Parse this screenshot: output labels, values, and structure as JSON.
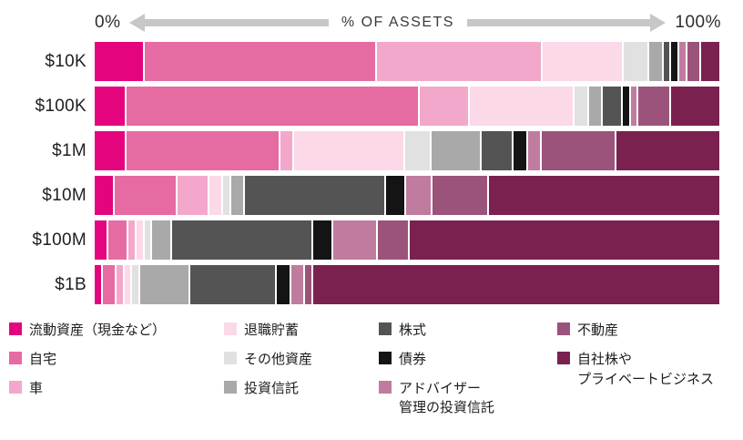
{
  "axis": {
    "left_label": "0%",
    "center_label": "% OF ASSETS",
    "right_label": "100%"
  },
  "categories": [
    {
      "key": "liquid",
      "label": "流動資産（現金など）",
      "color": "#e4057e"
    },
    {
      "key": "home",
      "label": "自宅",
      "color": "#e66ba2"
    },
    {
      "key": "car",
      "label": "車",
      "color": "#f3a8cb"
    },
    {
      "key": "retirement",
      "label": "退職貯蓄",
      "color": "#fbd9e8"
    },
    {
      "key": "other",
      "label": "その他資産",
      "color": "#e2e1e1"
    },
    {
      "key": "funds",
      "label": "投資信託",
      "color": "#a9a9a9"
    },
    {
      "key": "stocks",
      "label": "株式",
      "color": "#545454"
    },
    {
      "key": "bonds",
      "label": "債券",
      "color": "#141414"
    },
    {
      "key": "advisor",
      "label": "アドバイザー\n管理の投資信託",
      "color": "#c07c9e"
    },
    {
      "key": "realestate",
      "label": "不動産",
      "color": "#9c537b"
    },
    {
      "key": "business",
      "label": "自社株や\nプライベートビジネス",
      "color": "#7a2150"
    }
  ],
  "chart_data": {
    "type": "bar",
    "stacked": true,
    "orientation": "horizontal",
    "unit": "%",
    "x_range": [
      0,
      100
    ],
    "xlabel": "% OF ASSETS",
    "categories": [
      "$10K",
      "$100K",
      "$1M",
      "$10M",
      "$100M",
      "$1B"
    ],
    "series": [
      {
        "name": "流動資産（現金など）",
        "values": [
          8,
          5,
          5,
          3,
          2,
          1
        ]
      },
      {
        "name": "自宅",
        "values": [
          38,
          48,
          25,
          10,
          3,
          2
        ]
      },
      {
        "name": "車",
        "values": [
          27,
          8,
          2,
          5,
          1,
          1
        ]
      },
      {
        "name": "退職貯蓄",
        "values": [
          13,
          17,
          18,
          2,
          1,
          1
        ]
      },
      {
        "name": "その他資産",
        "values": [
          4,
          2,
          4,
          1,
          1,
          1
        ]
      },
      {
        "name": "投資信託",
        "values": [
          2,
          2,
          8,
          2,
          3,
          8
        ]
      },
      {
        "name": "株式",
        "values": [
          1,
          3,
          5,
          23,
          23,
          14
        ]
      },
      {
        "name": "債券",
        "values": [
          1,
          1,
          2,
          3,
          3,
          2
        ]
      },
      {
        "name": "アドバイザー管理の投資信託",
        "values": [
          1,
          1,
          2,
          4,
          7,
          2
        ]
      },
      {
        "name": "不動産",
        "values": [
          2,
          5,
          12,
          9,
          5,
          1
        ]
      },
      {
        "name": "自社株やプライベートビジネス",
        "values": [
          3,
          8,
          17,
          38,
          51,
          67
        ]
      }
    ]
  },
  "legend": {
    "columns": [
      [
        0,
        1,
        2
      ],
      [
        3,
        4,
        5
      ],
      [
        6,
        7,
        8
      ],
      [
        9,
        10
      ]
    ]
  }
}
